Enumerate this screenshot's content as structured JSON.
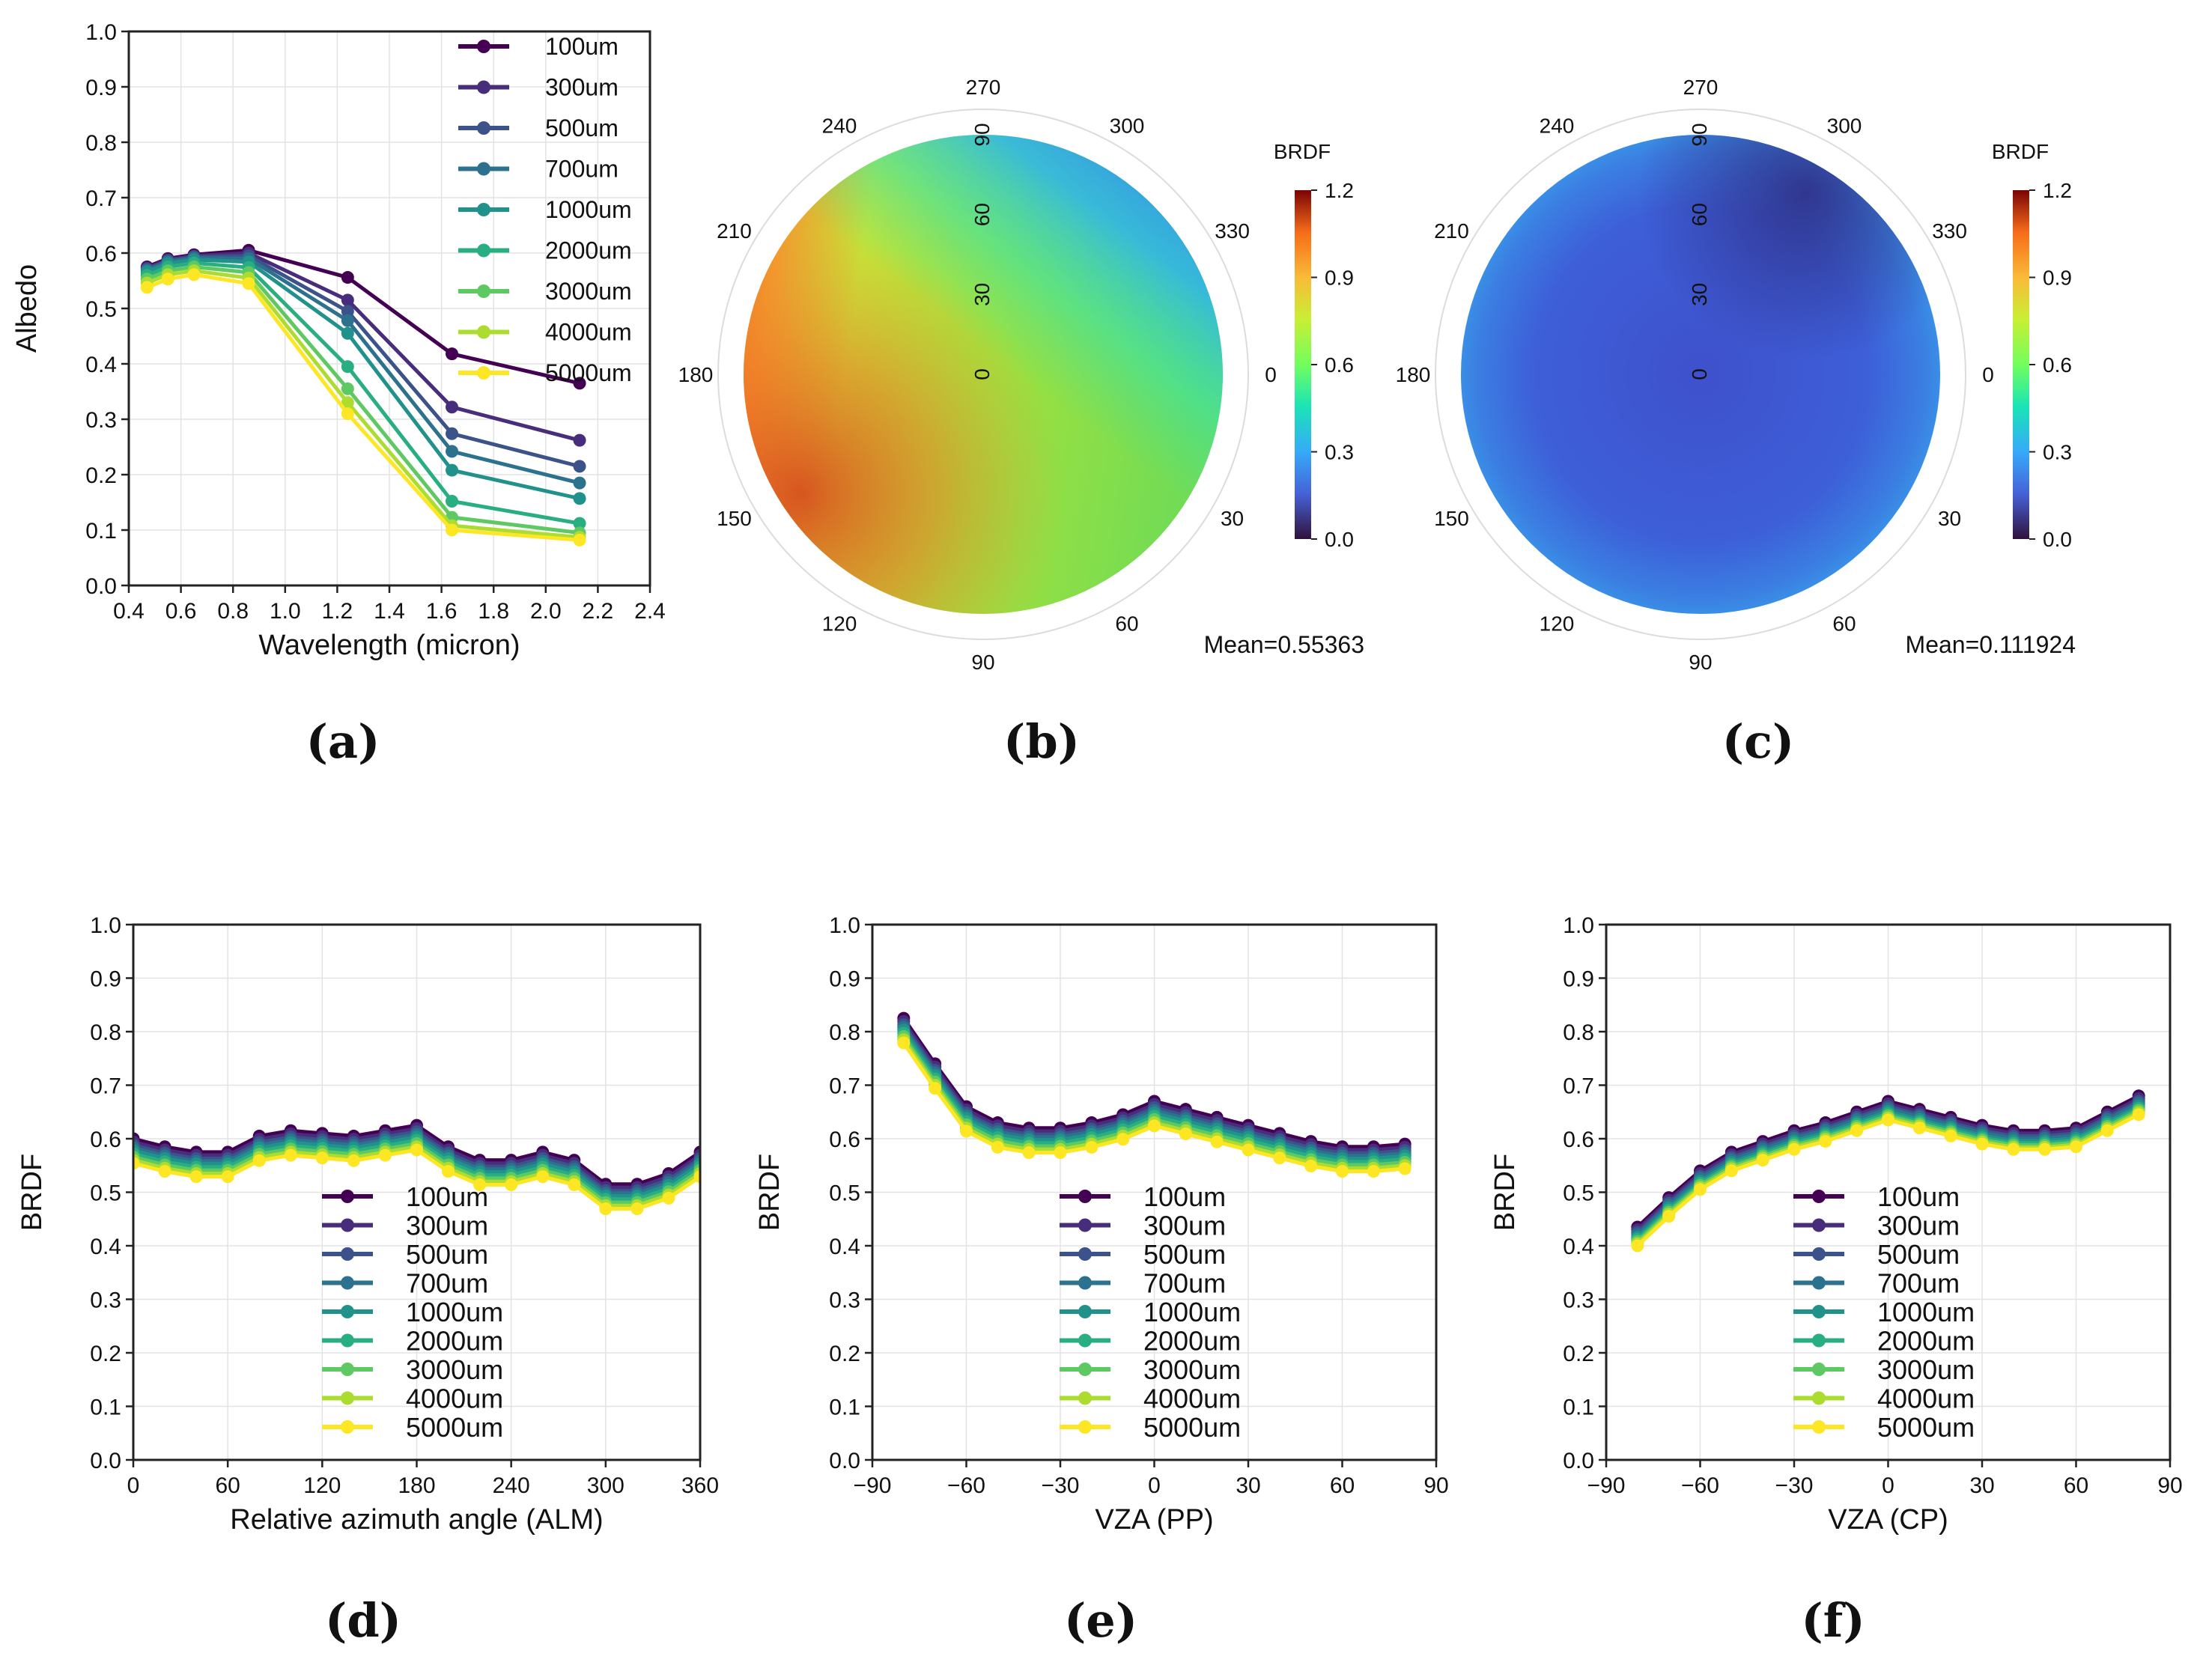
{
  "series_names": [
    "100um",
    "300um",
    "500um",
    "700um",
    "1000um",
    "2000um",
    "3000um",
    "4000um",
    "5000um"
  ],
  "series_colors": [
    "#440154",
    "#472d7b",
    "#3b528b",
    "#2c728e",
    "#21918c",
    "#28ae80",
    "#5ec962",
    "#addc30",
    "#fde725"
  ],
  "panel_captions": [
    "(a)",
    "(b)",
    "(c)",
    "(d)",
    "(e)",
    "(f)"
  ],
  "polar_b": {
    "colorbar_title": "BRDF",
    "mean_text": "Mean=0.55363"
  },
  "polar_c": {
    "colorbar_title": "BRDF",
    "mean_text": "Mean=0.111924"
  },
  "chart_data": [
    {
      "id": "a",
      "type": "line",
      "xlabel": "Wavelength (micron)",
      "ylabel": "Albedo",
      "xlim": [
        0.4,
        2.4
      ],
      "ylim": [
        0,
        1.0
      ],
      "xticks": [
        "0.4",
        "0.6",
        "0.8",
        "1.0",
        "1.2",
        "1.4",
        "1.6",
        "1.8",
        "2.0",
        "2.2",
        "2.4"
      ],
      "yticks": [
        "0.0",
        "0.1",
        "0.2",
        "0.3",
        "0.4",
        "0.5",
        "0.6",
        "0.7",
        "0.8",
        "0.9",
        "1.0"
      ],
      "grid": true,
      "legend": "upper right",
      "x": [
        0.47,
        0.55,
        0.65,
        0.86,
        1.24,
        1.64,
        2.13
      ],
      "series": [
        {
          "name": "100um",
          "values": [
            0.575,
            0.59,
            0.597,
            0.605,
            0.556,
            0.418,
            0.365
          ]
        },
        {
          "name": "300um",
          "values": [
            0.573,
            0.588,
            0.595,
            0.6,
            0.515,
            0.322,
            0.262
          ]
        },
        {
          "name": "500um",
          "values": [
            0.571,
            0.586,
            0.593,
            0.595,
            0.495,
            0.274,
            0.215
          ]
        },
        {
          "name": "700um",
          "values": [
            0.569,
            0.584,
            0.591,
            0.59,
            0.478,
            0.242,
            0.185
          ]
        },
        {
          "name": "1000um",
          "values": [
            0.566,
            0.581,
            0.588,
            0.584,
            0.455,
            0.208,
            0.157
          ]
        },
        {
          "name": "2000um",
          "values": [
            0.56,
            0.575,
            0.582,
            0.574,
            0.395,
            0.152,
            0.112
          ]
        },
        {
          "name": "3000um",
          "values": [
            0.553,
            0.568,
            0.575,
            0.565,
            0.355,
            0.123,
            0.095
          ]
        },
        {
          "name": "4000um",
          "values": [
            0.546,
            0.561,
            0.568,
            0.555,
            0.33,
            0.108,
            0.087
          ]
        },
        {
          "name": "5000um",
          "values": [
            0.538,
            0.553,
            0.561,
            0.545,
            0.31,
            0.1,
            0.082
          ]
        }
      ]
    },
    {
      "id": "b",
      "type": "heatmap",
      "polar": true,
      "angle_ticks": [
        "0",
        "30",
        "60",
        "90",
        "120",
        "150",
        "180",
        "210",
        "240",
        "270",
        "300",
        "330"
      ],
      "radial_ticks": [
        "0",
        "30",
        "60",
        "90"
      ],
      "colorbar_ticks": [
        "0.0",
        "0.3",
        "0.6",
        "0.9",
        "1.2"
      ],
      "colorbar_range": [
        0,
        1.2
      ],
      "mean": 0.55363
    },
    {
      "id": "c",
      "type": "heatmap",
      "polar": true,
      "angle_ticks": [
        "0",
        "30",
        "60",
        "90",
        "120",
        "150",
        "180",
        "210",
        "240",
        "270",
        "300",
        "330"
      ],
      "radial_ticks": [
        "0",
        "30",
        "60",
        "90"
      ],
      "colorbar_ticks": [
        "0.0",
        "0.3",
        "0.6",
        "0.9",
        "1.2"
      ],
      "colorbar_range": [
        0,
        1.2
      ],
      "mean": 0.111924
    },
    {
      "id": "d",
      "type": "line",
      "xlabel": "Relative azimuth angle (ALM)",
      "ylabel": "BRDF",
      "xlim": [
        0,
        360
      ],
      "ylim": [
        0,
        1.0
      ],
      "xticks": [
        "0",
        "60",
        "120",
        "180",
        "240",
        "300",
        "360"
      ],
      "yticks": [
        "0.0",
        "0.1",
        "0.2",
        "0.3",
        "0.4",
        "0.5",
        "0.6",
        "0.7",
        "0.8",
        "0.9",
        "1.0"
      ],
      "grid": true,
      "legend": "lower center",
      "x": [
        0,
        20,
        40,
        60,
        80,
        100,
        120,
        140,
        160,
        180,
        200,
        220,
        240,
        260,
        280,
        300,
        320,
        340,
        360
      ],
      "base": [
        0.6,
        0.585,
        0.575,
        0.575,
        0.605,
        0.615,
        0.61,
        0.605,
        0.615,
        0.625,
        0.585,
        0.56,
        0.56,
        0.575,
        0.56,
        0.515,
        0.515,
        0.535,
        0.575
      ],
      "offsets": [
        0.0,
        -0.006,
        -0.012,
        -0.017,
        -0.022,
        -0.028,
        -0.034,
        -0.04,
        -0.046
      ]
    },
    {
      "id": "e",
      "type": "line",
      "xlabel": "VZA (PP)",
      "ylabel": "BRDF",
      "xlim": [
        -90,
        90
      ],
      "ylim": [
        0,
        1.0
      ],
      "xticks": [
        "−90",
        "−60",
        "−30",
        "0",
        "30",
        "60",
        "90"
      ],
      "yticks": [
        "0.0",
        "0.1",
        "0.2",
        "0.3",
        "0.4",
        "0.5",
        "0.6",
        "0.7",
        "0.8",
        "0.9",
        "1.0"
      ],
      "grid": true,
      "legend": "lower center",
      "x": [
        -80,
        -70,
        -60,
        -50,
        -40,
        -30,
        -20,
        -10,
        0,
        10,
        20,
        30,
        40,
        50,
        60,
        70,
        80
      ],
      "base": [
        0.825,
        0.74,
        0.66,
        0.63,
        0.62,
        0.62,
        0.63,
        0.645,
        0.67,
        0.655,
        0.64,
        0.625,
        0.61,
        0.595,
        0.585,
        0.585,
        0.59
      ],
      "offsets": [
        0.0,
        -0.006,
        -0.012,
        -0.017,
        -0.022,
        -0.028,
        -0.034,
        -0.04,
        -0.046
      ]
    },
    {
      "id": "f",
      "type": "line",
      "xlabel": "VZA (CP)",
      "ylabel": "BRDF",
      "xlim": [
        -90,
        90
      ],
      "ylim": [
        0,
        1.0
      ],
      "xticks": [
        "−90",
        "−60",
        "−30",
        "0",
        "30",
        "60",
        "90"
      ],
      "yticks": [
        "0.0",
        "0.1",
        "0.2",
        "0.3",
        "0.4",
        "0.5",
        "0.6",
        "0.7",
        "0.8",
        "0.9",
        "1.0"
      ],
      "grid": true,
      "legend": "lower center",
      "x": [
        -80,
        -70,
        -60,
        -50,
        -40,
        -30,
        -20,
        -10,
        0,
        10,
        20,
        30,
        40,
        50,
        60,
        70,
        80
      ],
      "base": [
        0.435,
        0.49,
        0.54,
        0.575,
        0.595,
        0.615,
        0.63,
        0.65,
        0.67,
        0.655,
        0.64,
        0.625,
        0.615,
        0.615,
        0.62,
        0.65,
        0.68
      ],
      "offsets": [
        0.0,
        -0.005,
        -0.01,
        -0.014,
        -0.019,
        -0.023,
        -0.027,
        -0.031,
        -0.035
      ]
    }
  ]
}
